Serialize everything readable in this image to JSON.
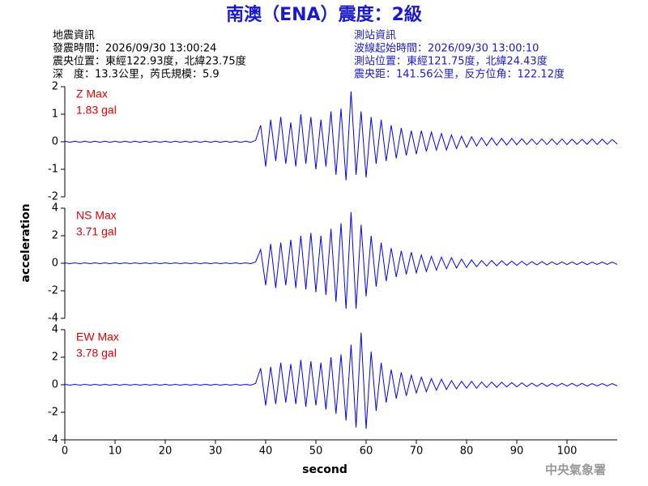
{
  "header": {
    "left": [
      "地震資訊",
      "發震時間：2026/09/30 13:00:24",
      "震央位置：東經122.93度，北緯23.75度",
      "深　度：13.3公里，芮氏規模：5.9"
    ],
    "right": [
      "測站資訊",
      "波線起始時間：2026/09/30 13:00:10",
      "測站位置：東經121.75度，北緯24.43度",
      "震央距：141.56公里，反方位角：122.12度"
    ]
  },
  "footer": "中央氣象署",
  "chart_data": {
    "type": "line",
    "title": "南澳（ENA）震度：2級",
    "xlabel": "second",
    "ylabel": "acceleration",
    "xlim": [
      0,
      110
    ],
    "xticks": [
      0,
      10,
      20,
      30,
      40,
      50,
      60,
      70,
      80,
      90,
      100
    ],
    "x": [
      0,
      1,
      2,
      3,
      4,
      5,
      6,
      7,
      8,
      9,
      10,
      11,
      12,
      13,
      14,
      15,
      16,
      17,
      18,
      19,
      20,
      21,
      22,
      23,
      24,
      25,
      26,
      27,
      28,
      29,
      30,
      31,
      32,
      33,
      34,
      35,
      36,
      37,
      38,
      39,
      40,
      41,
      42,
      43,
      44,
      45,
      46,
      47,
      48,
      49,
      50,
      51,
      52,
      53,
      54,
      55,
      56,
      57,
      58,
      59,
      60,
      61,
      62,
      63,
      64,
      65,
      66,
      67,
      68,
      69,
      70,
      71,
      72,
      73,
      74,
      75,
      76,
      77,
      78,
      79,
      80,
      81,
      82,
      83,
      84,
      85,
      86,
      87,
      88,
      89,
      90,
      91,
      92,
      93,
      94,
      95,
      96,
      97,
      98,
      99,
      100,
      101,
      102,
      103,
      104,
      105,
      106,
      107,
      108,
      109,
      110
    ],
    "panels": [
      {
        "label": "Z Max",
        "max_label": "1.83 gal",
        "color": "#0000ff",
        "ylim": [
          -2,
          2
        ],
        "yticks": [
          -2,
          -1,
          0,
          1,
          2
        ],
        "values": [
          0.02,
          -0.02,
          0.02,
          -0.02,
          0.02,
          -0.02,
          0.02,
          -0.02,
          0.02,
          -0.02,
          0.02,
          -0.02,
          0.02,
          -0.02,
          0.02,
          -0.02,
          0.02,
          -0.02,
          0.02,
          -0.02,
          0.02,
          -0.02,
          0.02,
          -0.02,
          0.02,
          -0.02,
          0.02,
          -0.02,
          0.02,
          -0.02,
          0.02,
          -0.02,
          0.02,
          -0.02,
          0.02,
          -0.02,
          0.02,
          -0.02,
          0.05,
          0.6,
          -0.9,
          0.8,
          -0.7,
          0.9,
          -0.8,
          0.7,
          -0.9,
          1.0,
          -0.8,
          0.9,
          -1.0,
          0.8,
          -0.9,
          1.1,
          -1.2,
          1.2,
          -1.4,
          1.83,
          -1.2,
          1.1,
          -1.3,
          0.9,
          -0.8,
          0.8,
          -0.7,
          0.6,
          -0.6,
          0.5,
          -0.5,
          0.4,
          -0.45,
          0.4,
          -0.35,
          0.35,
          -0.3,
          0.3,
          -0.3,
          0.25,
          -0.25,
          0.2,
          -0.2,
          0.18,
          -0.15,
          0.15,
          -0.14,
          0.14,
          -0.13,
          0.12,
          -0.12,
          0.12,
          -0.11,
          0.11,
          -0.1,
          0.1,
          -0.1,
          0.1,
          -0.1,
          0.1,
          -0.1,
          0.1,
          -0.1,
          0.09,
          -0.09,
          0.09,
          -0.09,
          0.1,
          -0.1,
          0.09,
          -0.09,
          0.08,
          -0.08
        ]
      },
      {
        "label": "NS Max",
        "max_label": "3.71 gal",
        "color": "#0000ff",
        "ylim": [
          -4,
          4
        ],
        "yticks": [
          -4,
          -2,
          0,
          2,
          4
        ],
        "values": [
          0.03,
          -0.03,
          0.03,
          -0.03,
          0.03,
          -0.03,
          0.03,
          -0.03,
          0.03,
          -0.03,
          0.03,
          -0.03,
          0.03,
          -0.03,
          0.03,
          -0.03,
          0.03,
          -0.03,
          0.03,
          -0.03,
          0.03,
          -0.03,
          0.03,
          -0.03,
          0.03,
          -0.03,
          0.03,
          -0.03,
          0.03,
          -0.03,
          0.03,
          -0.03,
          0.03,
          -0.03,
          0.03,
          -0.03,
          0.03,
          -0.03,
          0.1,
          1.0,
          -1.6,
          1.4,
          -1.8,
          1.5,
          -1.6,
          1.7,
          -1.8,
          2.0,
          -1.9,
          2.2,
          -2.1,
          2.0,
          -2.3,
          2.5,
          -2.8,
          2.9,
          -3.3,
          3.71,
          -3.3,
          2.8,
          -2.4,
          2.0,
          -1.7,
          1.5,
          -1.3,
          1.1,
          -1.0,
          0.9,
          -0.8,
          0.8,
          -0.7,
          0.6,
          -0.6,
          0.5,
          -0.5,
          0.45,
          -0.4,
          0.4,
          -0.35,
          0.3,
          -0.3,
          0.25,
          -0.25,
          0.2,
          -0.2,
          0.2,
          -0.18,
          0.18,
          -0.15,
          0.15,
          -0.15,
          0.14,
          -0.14,
          0.12,
          -0.12,
          0.12,
          -0.12,
          0.1,
          -0.1,
          0.1,
          -0.1,
          0.1,
          -0.1,
          0.1,
          -0.1,
          0.09,
          -0.09,
          0.09,
          -0.09,
          0.08,
          -0.08
        ]
      },
      {
        "label": "EW Max",
        "max_label": "3.78 gal",
        "color": "#0000ff",
        "ylim": [
          -4,
          4
        ],
        "yticks": [
          -4,
          -2,
          0,
          2,
          4
        ],
        "values": [
          0.03,
          -0.03,
          0.03,
          -0.03,
          0.03,
          -0.03,
          0.03,
          -0.03,
          0.03,
          -0.03,
          0.03,
          -0.03,
          0.03,
          -0.03,
          0.03,
          -0.03,
          0.03,
          -0.03,
          0.03,
          -0.03,
          0.03,
          -0.03,
          0.03,
          -0.03,
          0.03,
          -0.03,
          0.03,
          -0.03,
          0.03,
          -0.03,
          0.03,
          -0.03,
          0.03,
          -0.03,
          0.03,
          -0.03,
          0.03,
          -0.03,
          0.1,
          1.2,
          -1.5,
          1.3,
          -1.4,
          1.6,
          -1.3,
          1.5,
          -1.4,
          1.8,
          -1.6,
          1.7,
          -1.5,
          1.6,
          -1.8,
          2.0,
          -2.1,
          2.2,
          -2.6,
          2.9,
          -3.1,
          3.78,
          -3.2,
          2.4,
          -1.9,
          1.6,
          -1.3,
          1.1,
          -1.0,
          0.9,
          -0.8,
          0.7,
          -0.6,
          0.55,
          -0.5,
          0.45,
          -0.4,
          0.4,
          -0.35,
          0.3,
          -0.3,
          0.25,
          -0.25,
          0.25,
          -0.25,
          0.2,
          -0.2,
          0.2,
          -0.18,
          0.18,
          -0.15,
          0.15,
          -0.15,
          0.14,
          -0.14,
          0.12,
          -0.12,
          0.12,
          -0.12,
          0.1,
          -0.1,
          0.1,
          -0.1,
          0.1,
          -0.1,
          0.1,
          -0.1,
          0.09,
          -0.09,
          0.09,
          -0.09,
          0.08,
          -0.08
        ]
      }
    ]
  }
}
